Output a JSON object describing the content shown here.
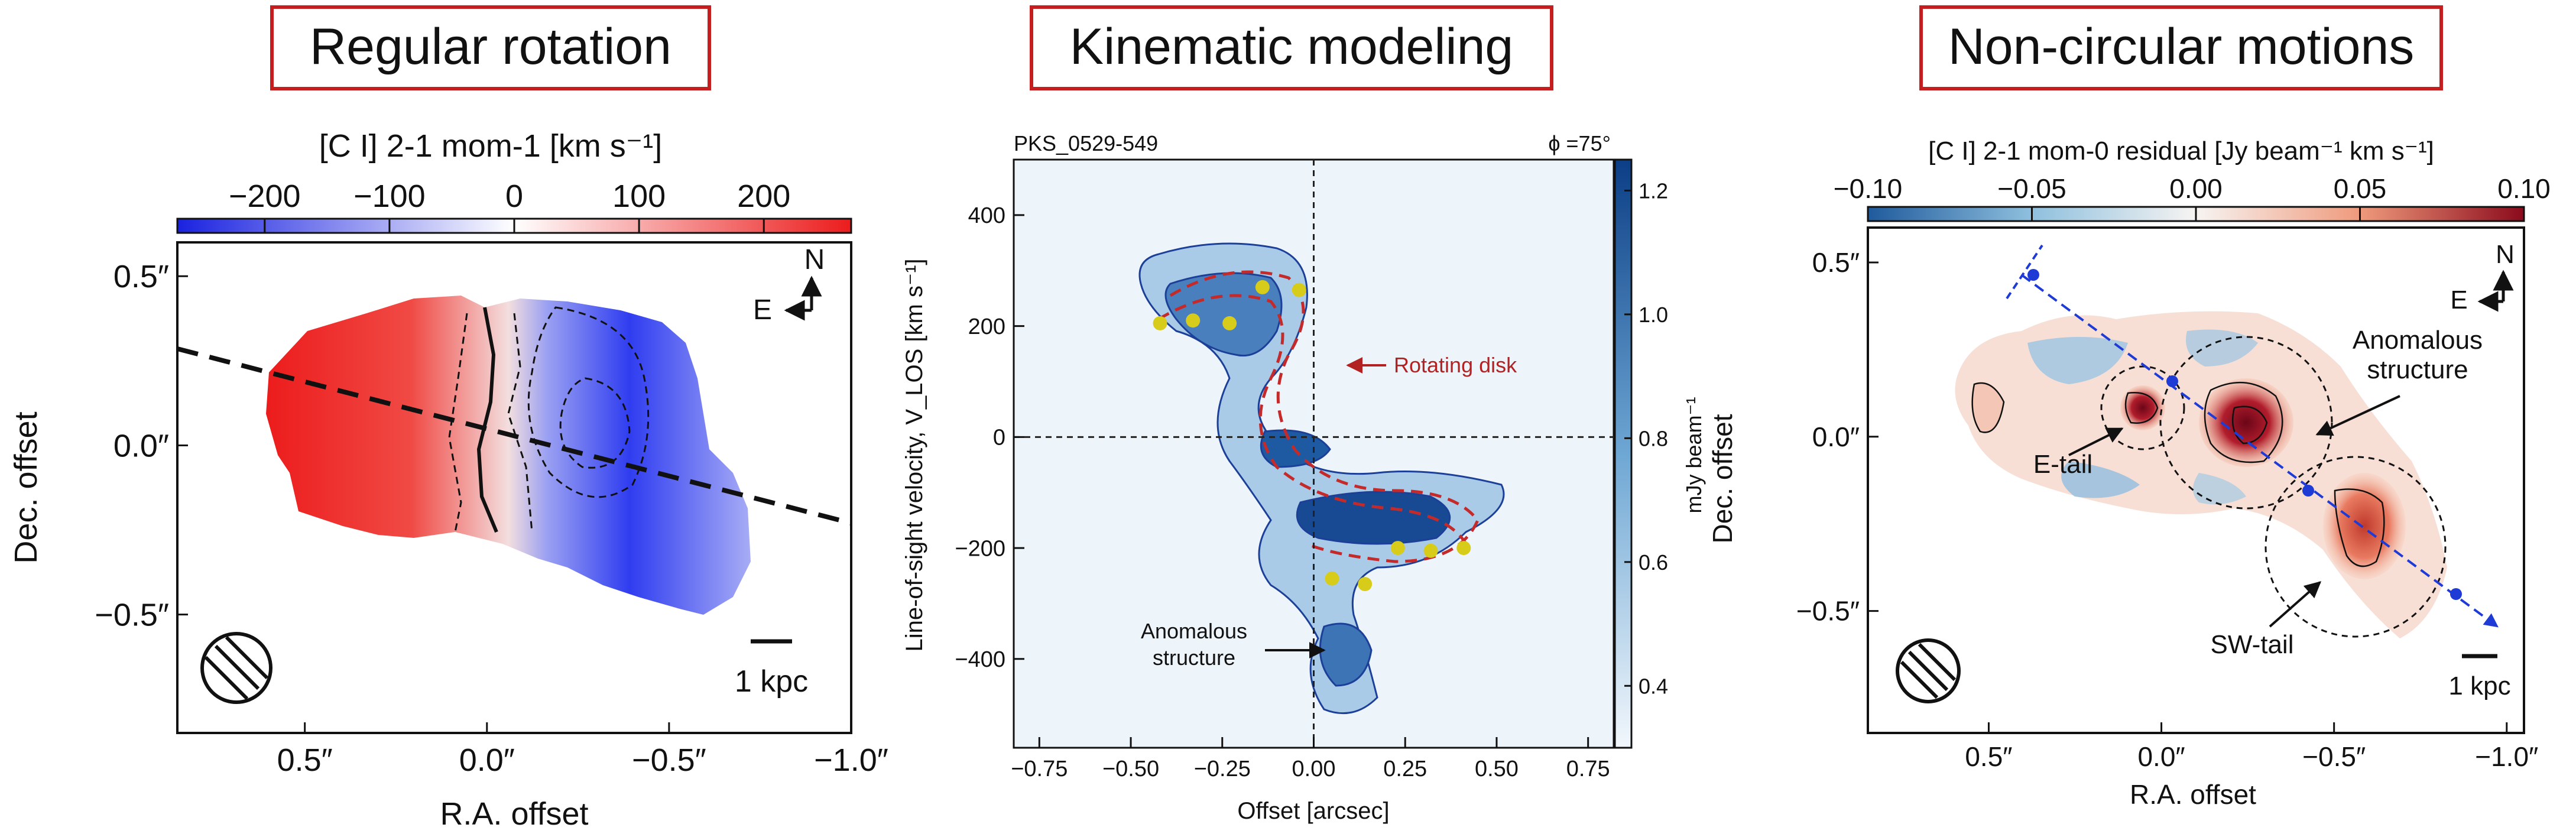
{
  "panels": [
    {
      "heading": "Regular rotation",
      "colorbar_label": "[C I] 2-1 mom-1 [km s⁻¹]",
      "colorbar_ticks": [
        "−200",
        "−100",
        "0",
        "100",
        "200"
      ],
      "xlabel": "R.A. offset",
      "ylabel": "Dec. offset",
      "xticks": [
        "0.5″",
        "0.0″",
        "−0.5″",
        "−1.0″"
      ],
      "yticks": [
        "0.5″",
        "0.0″",
        "−0.5″"
      ],
      "compass_n": "N",
      "compass_e": "E",
      "scalebar": "1 kpc"
    },
    {
      "heading": "Kinematic modeling",
      "source": "PKS_0529-549",
      "angle": "ϕ =75°",
      "xlabel": "Offset [arcsec]",
      "ylabel": "Line-of-sight velocity, V_LOS [km s⁻¹]",
      "xticks": [
        "−0.75",
        "−0.50",
        "−0.25",
        "0.00",
        "0.25",
        "0.50",
        "0.75"
      ],
      "yticks": [
        "400",
        "200",
        "0",
        "−200",
        "−400"
      ],
      "colorbar_label": "mJy beam⁻¹",
      "colorbar_ticks": [
        "1.2",
        "1.0",
        "0.8",
        "0.6",
        "0.4"
      ],
      "annotation_disk": "Rotating disk",
      "annotation_anom_1": "Anomalous",
      "annotation_anom_2": "structure"
    },
    {
      "heading": "Non-circular motions",
      "colorbar_label": "[C I] 2-1 mom-0 residual [Jy beam⁻¹ km s⁻¹]",
      "colorbar_ticks": [
        "−0.10",
        "−0.05",
        "0.00",
        "0.05",
        "0.10"
      ],
      "xlabel": "R.A. offset",
      "ylabel": "Dec. offset",
      "xticks": [
        "0.5″",
        "0.0″",
        "−0.5″",
        "−1.0″"
      ],
      "yticks": [
        "0.5″",
        "0.0″",
        "−0.5″"
      ],
      "compass_n": "N",
      "compass_e": "E",
      "scalebar": "1 kpc",
      "annotation_anom_1": "Anomalous",
      "annotation_anom_2": "structure",
      "annotation_etail": "E-tail",
      "annotation_swtail": "SW-tail"
    }
  ],
  "chart_data": [
    {
      "type": "heatmap",
      "title": "Regular rotation",
      "quantity": "[C I] 2-1 mom-1 velocity field",
      "colorbar_range": [
        -270,
        270
      ],
      "colormap": [
        "#1a22e0",
        "#ffffff",
        "#ec1c1c"
      ],
      "xlabel": "R.A. offset",
      "ylabel": "Dec. offset",
      "xlim": [
        0.85,
        -1.0
      ],
      "ylim": [
        -0.85,
        0.6
      ]
    },
    {
      "type": "scatter",
      "title": "Kinematic modeling",
      "xlabel": "Offset [arcsec]",
      "ylabel": "Line-of-sight velocity, V_LOS [km s⁻¹]",
      "xlim": [
        -0.82,
        0.82
      ],
      "ylim": [
        -560,
        500
      ],
      "colorbar_range": [
        0.3,
        1.25
      ],
      "series": [
        {
          "x": [
            -0.42,
            -0.33,
            -0.23,
            -0.14,
            -0.04,
            0.14,
            0.23,
            0.32,
            0.41,
            0.05
          ],
          "y": [
            205,
            210,
            205,
            270,
            265,
            -265,
            -200,
            -205,
            -200,
            -255
          ]
        }
      ]
    },
    {
      "type": "heatmap",
      "title": "Non-circular motions",
      "quantity": "[C I] 2-1 mom-0 residual",
      "colorbar_range": [
        -0.1,
        0.1
      ],
      "colormap": [
        "#1f5a9c",
        "#f7f4f2",
        "#8b0a1c"
      ],
      "xlabel": "R.A. offset",
      "ylabel": "Dec. offset",
      "xlim": [
        0.85,
        -1.05
      ],
      "ylim": [
        -0.85,
        0.6
      ]
    }
  ]
}
